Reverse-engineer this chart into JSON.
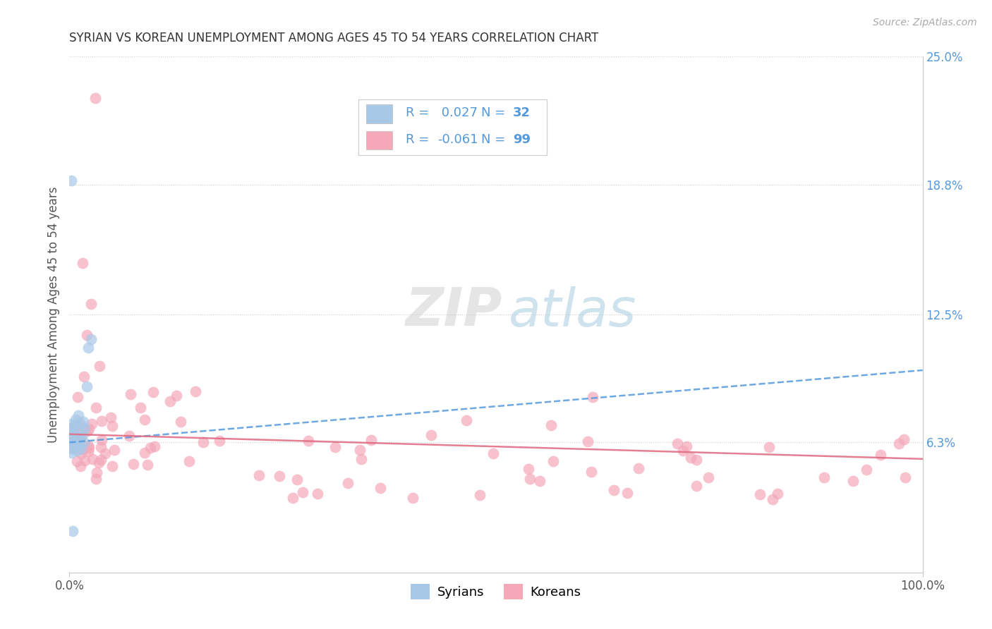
{
  "title": "SYRIAN VS KOREAN UNEMPLOYMENT AMONG AGES 45 TO 54 YEARS CORRELATION CHART",
  "source": "Source: ZipAtlas.com",
  "ylabel": "Unemployment Among Ages 45 to 54 years",
  "xlim": [
    0.0,
    1.0
  ],
  "ylim": [
    0.0,
    0.25
  ],
  "right_ytick_labels": [
    "6.3%",
    "12.5%",
    "18.8%",
    "25.0%"
  ],
  "right_ytick_values": [
    0.063,
    0.125,
    0.188,
    0.25
  ],
  "legend_r_syrian": " 0.027",
  "legend_n_syrian": "32",
  "legend_r_korean": "-0.061",
  "legend_n_korean": "99",
  "syrian_color": "#a8c8e8",
  "korean_color": "#f4a8b8",
  "trend_syrian_color": "#5599dd",
  "trend_korean_color": "#e06880",
  "background_color": "#ffffff",
  "grid_color": "#c8c8c8",
  "title_color": "#333333",
  "right_axis_color": "#5599dd",
  "legend_text_color": "#5599dd",
  "source_color": "#aaaaaa",
  "trend_syrian_start_y": 0.063,
  "trend_syrian_end_y": 0.098,
  "trend_korean_start_y": 0.067,
  "trend_korean_end_y": 0.055,
  "watermark_zip_color": "#c8c8c8",
  "watermark_atlas_color": "#99ccee"
}
